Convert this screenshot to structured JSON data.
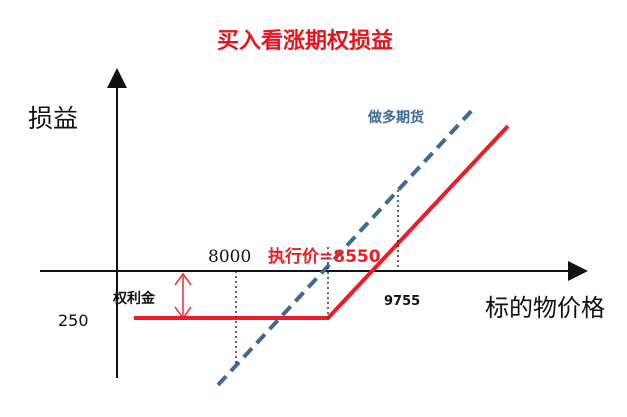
{
  "title": "买入看涨期权损益",
  "labels": {
    "y_axis": "损益",
    "x_axis": "标的物价格",
    "futures_line": "做多期货",
    "premium": "权利金",
    "strike": "执行价=8550",
    "tick_8000": "8000",
    "tick_9755": "9755",
    "value_250": "250"
  },
  "colors": {
    "title": "#e8141c",
    "payoff": "#ee1c24",
    "futures": "#3f6a94",
    "axes": "#111111",
    "premium_arrow": "#ee1c24"
  }
}
